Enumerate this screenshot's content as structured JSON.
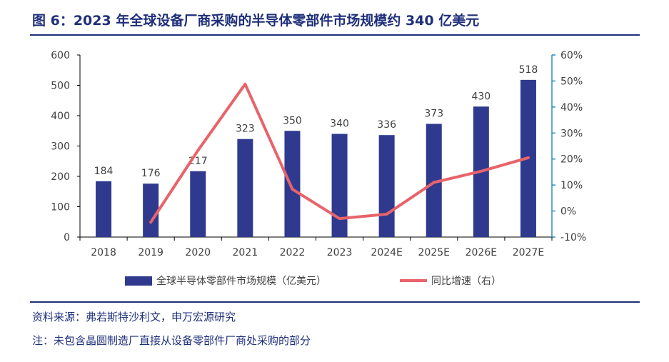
{
  "header": {
    "title": "图 6：2023 年全球设备厂商采购的半导体零部件市场规模约 340 亿美元"
  },
  "chart_data": {
    "type": "bar",
    "categories": [
      "2018",
      "2019",
      "2020",
      "2021",
      "2022",
      "2023",
      "2024E",
      "2025E",
      "2026E",
      "2027E"
    ],
    "series": [
      {
        "name": "全球半导体零部件市场规模（亿美元）",
        "type": "bar",
        "axis": "left",
        "values": [
          184,
          176,
          217,
          323,
          350,
          340,
          336,
          373,
          430,
          518
        ]
      },
      {
        "name": "同比增速（右）",
        "type": "line",
        "axis": "right",
        "values": [
          null,
          -4.3,
          23.3,
          48.8,
          8.4,
          -2.9,
          -1.2,
          11.0,
          15.3,
          20.5
        ]
      }
    ],
    "y_left": {
      "min": 0,
      "max": 600,
      "ticks": [
        "0",
        "100",
        "200",
        "300",
        "400",
        "500",
        "600"
      ]
    },
    "y_right": {
      "min": -10,
      "max": 60,
      "ticks": [
        "-10%",
        "0%",
        "10%",
        "20%",
        "30%",
        "40%",
        "50%",
        "60%"
      ]
    },
    "legend_position": "bottom",
    "grid": false,
    "colors": {
      "bar": "#2f3a8f",
      "line": "#e8636a",
      "axis_left": "#000000",
      "axis_right": "#2e8bc0",
      "text": "#404040"
    }
  },
  "footer": {
    "source": "资料来源：弗若斯特沙利文，申万宏源研究",
    "note": "注：未包含晶圆制造厂直接从设备零部件厂商处采购的部分"
  }
}
